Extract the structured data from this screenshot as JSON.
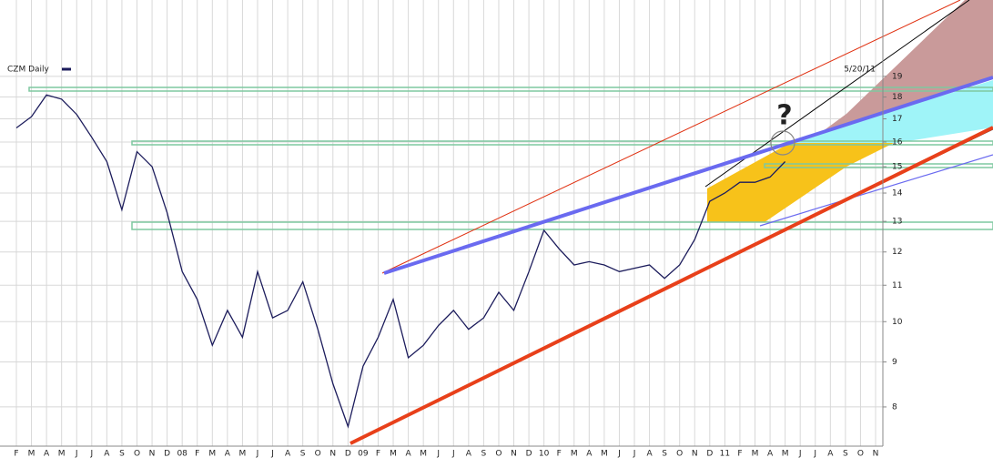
{
  "chart_data": {
    "type": "line",
    "date_label": "5/20/11",
    "annotations": [
      "?"
    ],
    "categories": [
      "F",
      "M",
      "A",
      "M",
      "J",
      "J",
      "A",
      "S",
      "O",
      "N",
      "D",
      "08",
      "F",
      "M",
      "A",
      "M",
      "J",
      "J",
      "A",
      "S",
      "O",
      "N",
      "D",
      "09",
      "F",
      "M",
      "A",
      "M",
      "J",
      "J",
      "A",
      "S",
      "O",
      "N",
      "D",
      "10",
      "F",
      "M",
      "A",
      "M",
      "J",
      "J",
      "A",
      "S",
      "O",
      "N",
      "D",
      "11",
      "F",
      "M",
      "A",
      "M",
      "J",
      "J",
      "A",
      "S",
      "O",
      "N"
    ],
    "series": [
      {
        "name": "CZM Daily",
        "color": "#1c1c5c",
        "values": [
          16.6,
          17.1,
          18.1,
          17.9,
          17.2,
          16.2,
          15.2,
          13.4,
          15.6,
          15.0,
          13.3,
          11.4,
          10.6,
          9.4,
          10.3,
          9.6,
          11.4,
          10.1,
          10.3,
          11.1,
          9.8,
          8.5,
          7.6,
          8.9,
          9.6,
          10.6,
          9.1,
          9.4,
          9.9,
          10.3,
          9.8,
          10.1,
          10.8,
          10.3,
          11.4,
          12.7,
          12.1,
          11.6,
          11.7,
          11.6,
          11.4,
          11.5,
          11.6,
          11.2,
          11.6,
          12.4,
          13.7,
          14.0,
          14.4,
          14.4,
          14.6,
          15.2,
          null,
          null,
          null,
          null,
          null,
          null
        ]
      }
    ],
    "log_scale": true,
    "ylim": [
      7.22,
      23.2
    ],
    "yticks": [
      8,
      9,
      10,
      11,
      12,
      13,
      14,
      15,
      16,
      17,
      18,
      19
    ],
    "grid": true
  }
}
